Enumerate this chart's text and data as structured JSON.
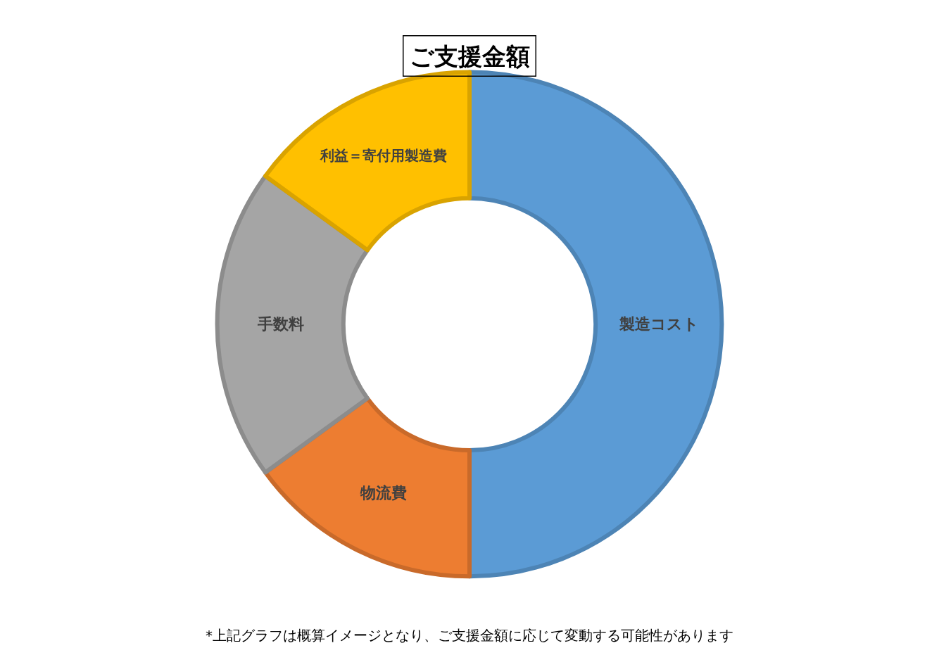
{
  "chart_data": {
    "type": "donut",
    "title": "ご支援金額",
    "categories": [
      "製造コスト",
      "物流費",
      "手数料",
      "利益＝寄付用製造費"
    ],
    "values": [
      50,
      15,
      20,
      15
    ],
    "colors": [
      "#5b9bd5",
      "#ed7d31",
      "#a5a5a5",
      "#ffc000"
    ],
    "legend": false,
    "annotations": [
      "*上記グラフは概算イメージとなり、ご支援金額に応じて変動する可能性があります"
    ]
  }
}
